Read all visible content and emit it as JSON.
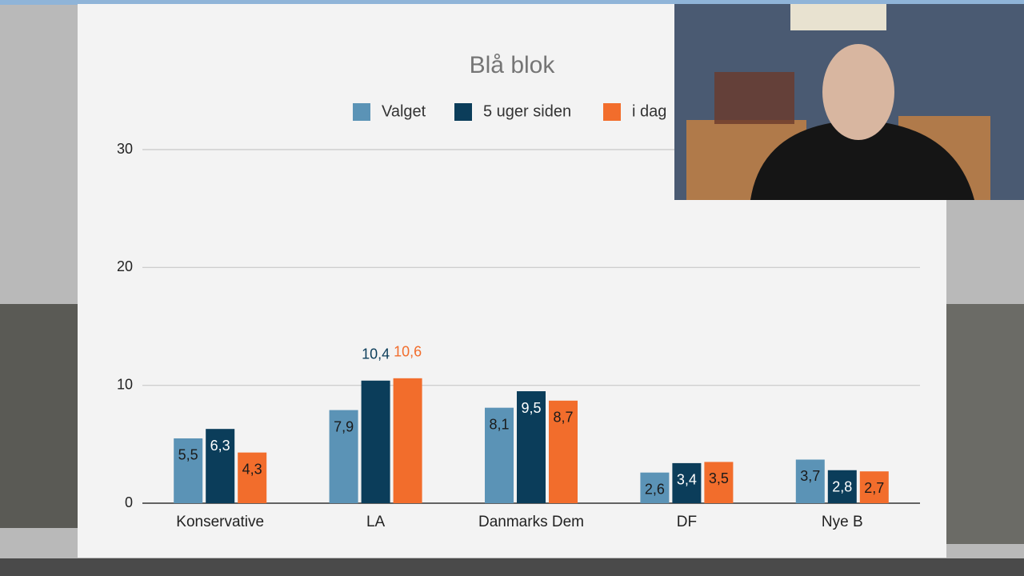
{
  "chart_data": {
    "type": "bar",
    "title": "Blå blok",
    "categories": [
      "Konservative",
      "LA",
      "Danmarks Dem",
      "DF",
      "Nye B"
    ],
    "series": [
      {
        "name": "Valget",
        "color": "#5b93b6",
        "values": [
          5.5,
          7.9,
          8.1,
          2.6,
          3.7
        ],
        "value_labels": [
          "5,5",
          "7,9",
          "8,1",
          "2,6",
          "3,7"
        ]
      },
      {
        "name": "5 uger siden",
        "color": "#0b3d5a",
        "values": [
          6.3,
          10.4,
          9.5,
          3.4,
          2.8
        ],
        "value_labels": [
          "6,3",
          "10,4",
          "9,5",
          "3,4",
          "2,8"
        ]
      },
      {
        "name": "i dag",
        "color": "#f26d2c",
        "values": [
          4.3,
          10.6,
          8.7,
          3.5,
          2.7
        ],
        "value_labels": [
          "4,3",
          "10,6",
          "8,7",
          "3,5",
          "2,7"
        ]
      }
    ],
    "ylim": [
      0,
      30
    ],
    "yticks": [
      0,
      10,
      20,
      30
    ],
    "grid": true,
    "legend": "top"
  }
}
